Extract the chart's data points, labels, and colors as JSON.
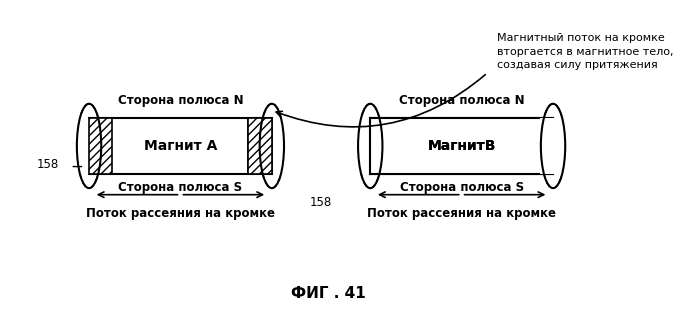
{
  "title": "ФИГ . 41",
  "magnet_a_label": "Магнит А",
  "magnet_b_label": "МагнитВ",
  "north_label": "Сторона полюса N",
  "south_label": "Сторона полюса S",
  "leakage_label": "Поток рассеяния на кромке",
  "top_annotation": "Магнитный поток на кромке\nвторгается в магнитное тело,\nсоздавая силу притяжения",
  "label_158": "158",
  "bg_color": "#ffffff"
}
